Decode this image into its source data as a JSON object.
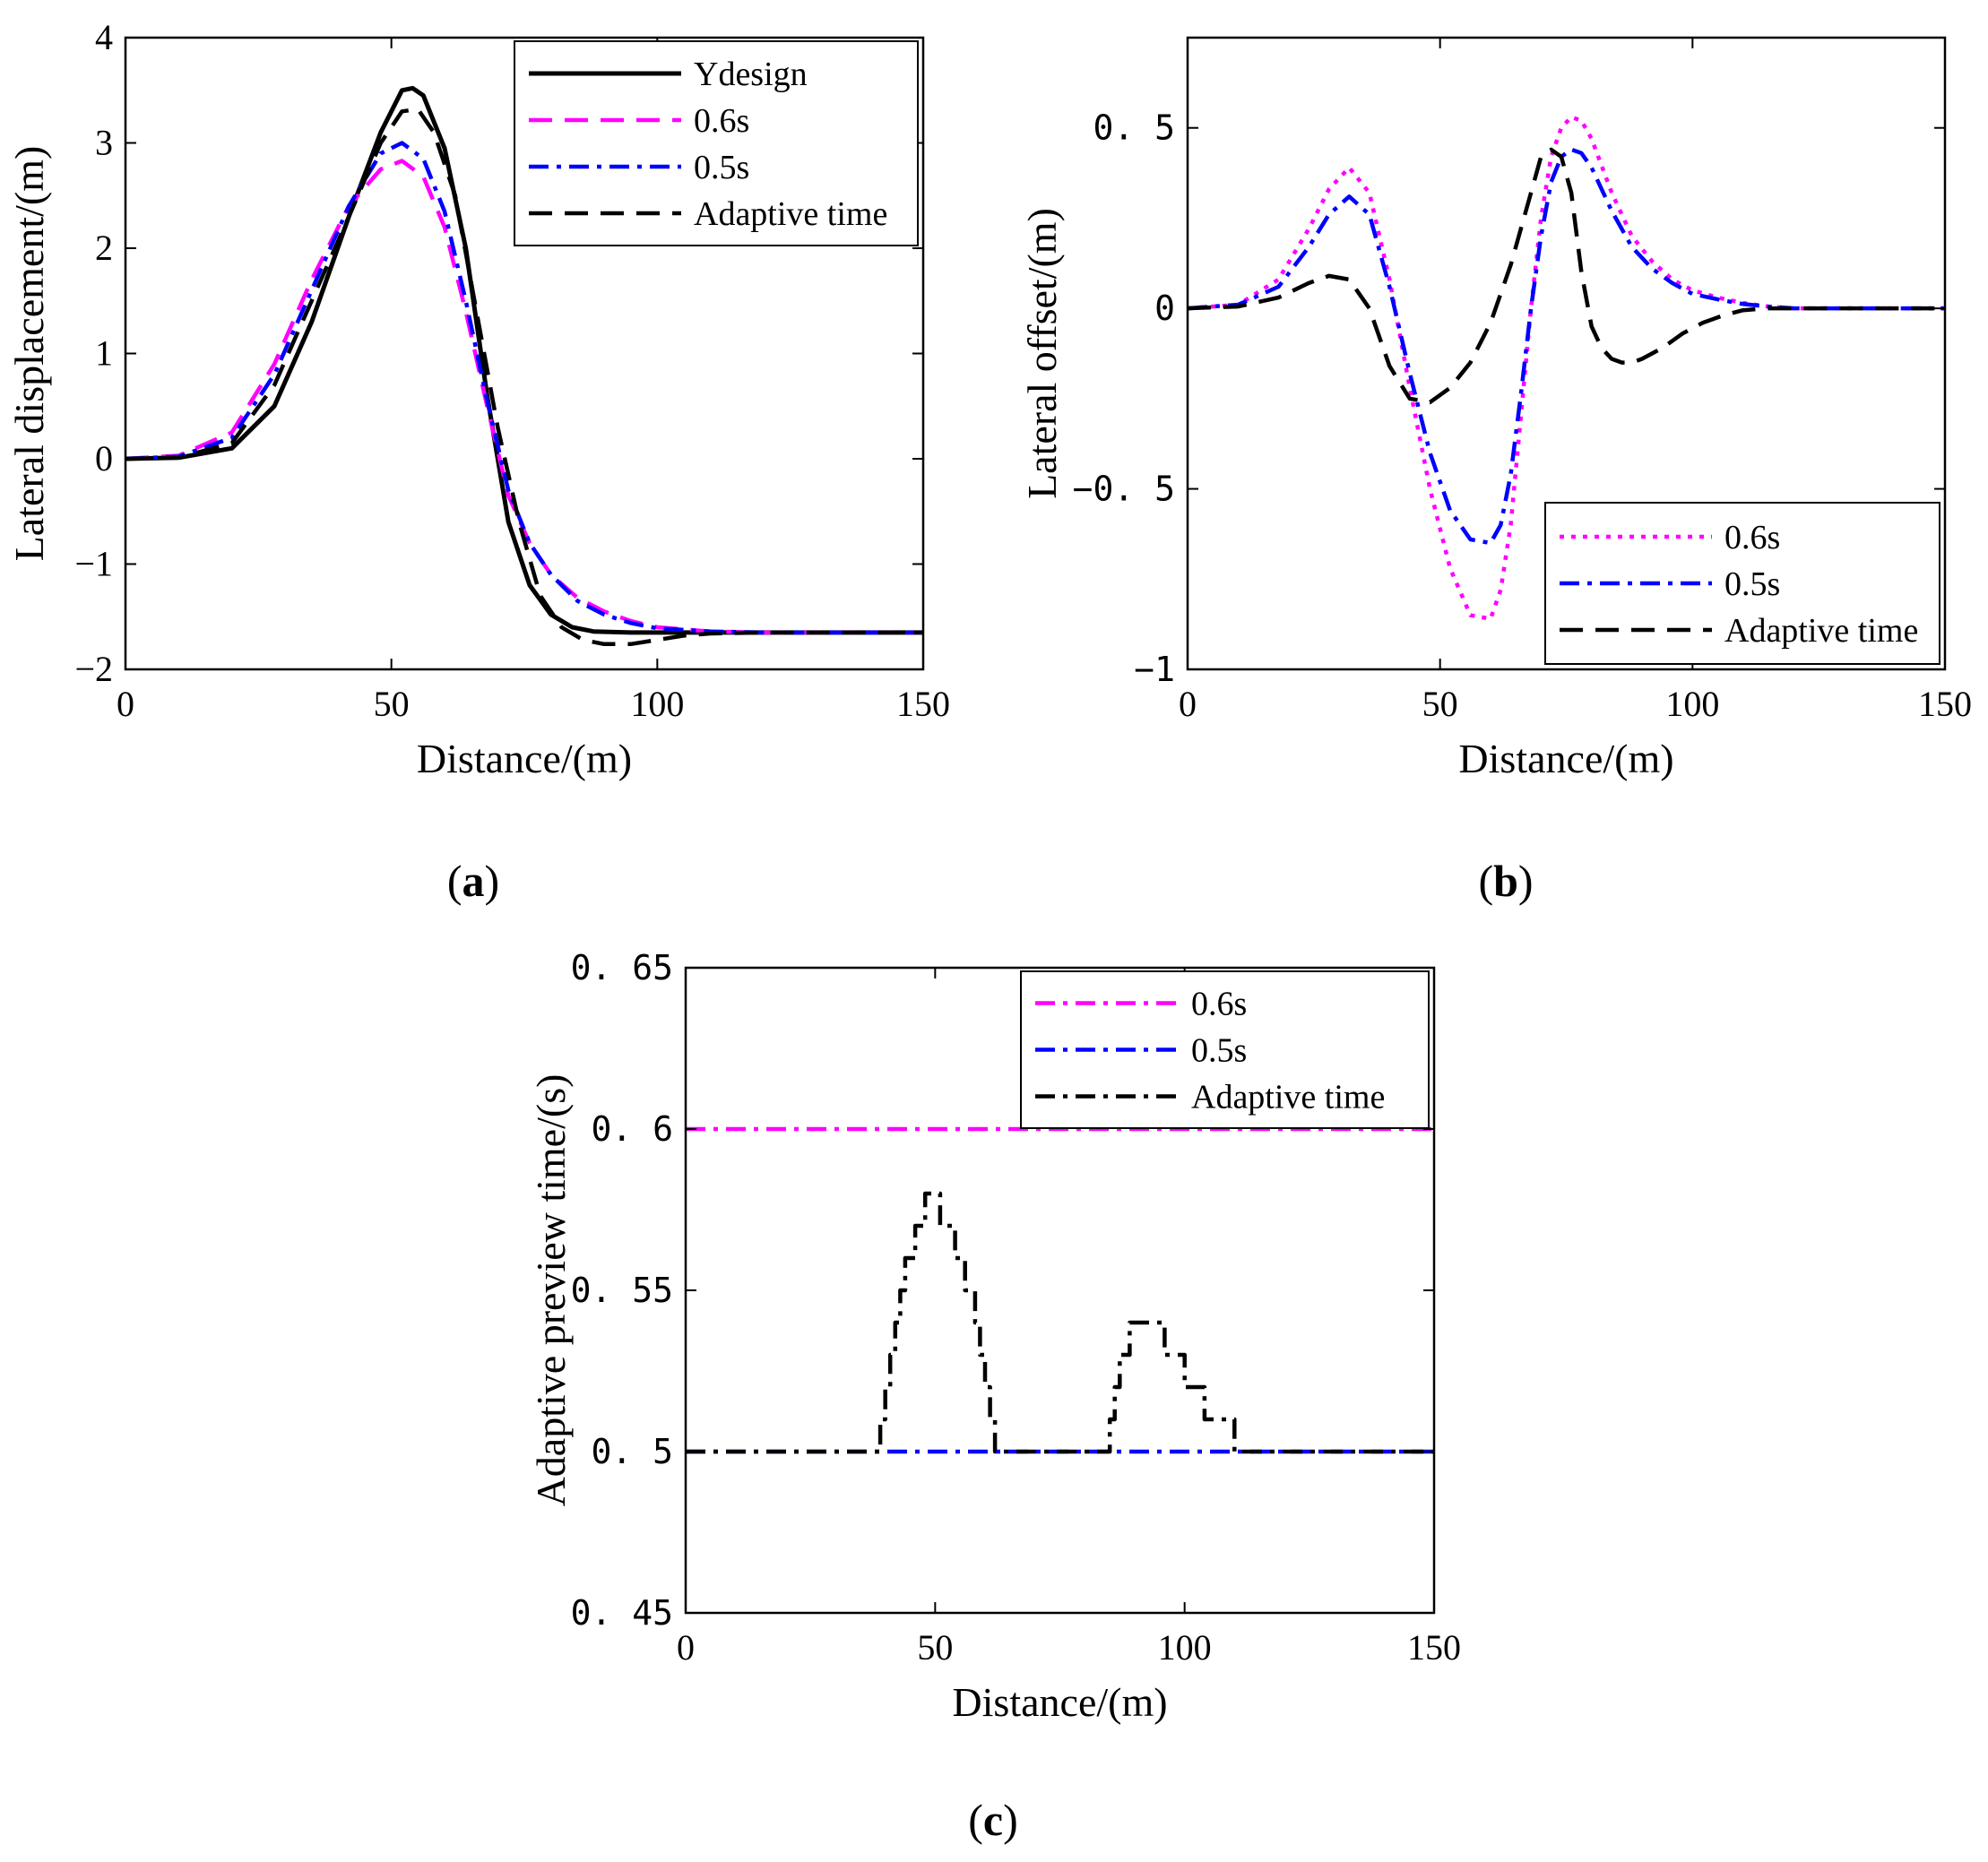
{
  "figure": {
    "captions": [
      {
        "open": "(",
        "letter": "a",
        "close": ")"
      },
      {
        "open": "(",
        "letter": "b",
        "close": ")"
      },
      {
        "open": "(",
        "letter": "c",
        "close": ")"
      }
    ]
  },
  "chart_data": [
    {
      "id": "a",
      "type": "line",
      "title": "",
      "xlabel": "Distance/(m)",
      "ylabel": "Lateral displacement/(m)",
      "xlim": [
        0,
        150
      ],
      "ylim": [
        -2,
        4
      ],
      "xticks": [
        0,
        50,
        100,
        150
      ],
      "yticks": [
        -2,
        -1,
        0,
        1,
        2,
        3,
        4
      ],
      "xtick_labels": [
        "0",
        "50",
        "100",
        "150"
      ],
      "ytick_labels": [
        "−2",
        "−1",
        "0",
        "1",
        "2",
        "3",
        "4"
      ],
      "legend_position": "top-right",
      "grid": false,
      "series": [
        {
          "name": "Ydesign",
          "color": "#000000",
          "style": "solid",
          "x": [
            0,
            10,
            20,
            28,
            35,
            42,
            48,
            52,
            54,
            56,
            60,
            64,
            68,
            72,
            76,
            80,
            84,
            88,
            95,
            105,
            120,
            150
          ],
          "y": [
            0,
            0.01,
            0.1,
            0.5,
            1.3,
            2.3,
            3.1,
            3.5,
            3.52,
            3.45,
            2.95,
            2.0,
            0.6,
            -0.6,
            -1.2,
            -1.48,
            -1.6,
            -1.64,
            -1.65,
            -1.65,
            -1.65,
            -1.65
          ]
        },
        {
          "name": "0.6s",
          "color": "#ff00ff",
          "style": "dash",
          "x": [
            0,
            10,
            20,
            28,
            35,
            42,
            48,
            52,
            56,
            60,
            64,
            68,
            72,
            76,
            80,
            85,
            90,
            95,
            100,
            110,
            120,
            150
          ],
          "y": [
            0,
            0.03,
            0.25,
            0.9,
            1.7,
            2.4,
            2.75,
            2.83,
            2.68,
            2.2,
            1.4,
            0.5,
            -0.35,
            -0.8,
            -1.1,
            -1.32,
            -1.45,
            -1.54,
            -1.6,
            -1.64,
            -1.65,
            -1.65
          ]
        },
        {
          "name": "0.5s",
          "color": "#0000ff",
          "style": "dashdot",
          "x": [
            0,
            10,
            20,
            28,
            35,
            42,
            48,
            52,
            56,
            60,
            64,
            68,
            72,
            76,
            80,
            85,
            90,
            95,
            100,
            110,
            120,
            150
          ],
          "y": [
            0,
            0.02,
            0.2,
            0.8,
            1.6,
            2.4,
            2.9,
            3.0,
            2.85,
            2.35,
            1.5,
            0.55,
            -0.3,
            -0.8,
            -1.1,
            -1.35,
            -1.48,
            -1.56,
            -1.61,
            -1.64,
            -1.65,
            -1.65
          ]
        },
        {
          "name": "Adaptive time",
          "color": "#000000",
          "style": "dash",
          "x": [
            0,
            10,
            20,
            28,
            35,
            42,
            48,
            52,
            55,
            58,
            62,
            66,
            70,
            74,
            78,
            82,
            86,
            90,
            95,
            100,
            105,
            110,
            120,
            150
          ],
          "y": [
            0,
            0.01,
            0.15,
            0.7,
            1.5,
            2.3,
            3.0,
            3.3,
            3.32,
            3.1,
            2.5,
            1.4,
            0.3,
            -0.6,
            -1.3,
            -1.6,
            -1.72,
            -1.76,
            -1.76,
            -1.72,
            -1.68,
            -1.66,
            -1.65,
            -1.65
          ]
        }
      ]
    },
    {
      "id": "b",
      "type": "line",
      "title": "",
      "xlabel": "Distance/(m)",
      "ylabel": "Lateral offset/(m)",
      "xlim": [
        0,
        150
      ],
      "ylim": [
        -1,
        0.75
      ],
      "xticks": [
        0,
        50,
        100,
        150
      ],
      "yticks": [
        -1,
        -0.5,
        0,
        0.5
      ],
      "xtick_labels": [
        "0",
        "50",
        "100",
        "150"
      ],
      "ytick_labels": [
        "−1",
        "−0. 5",
        "0",
        "0. 5"
      ],
      "legend_position": "bottom-right",
      "grid": false,
      "series": [
        {
          "name": "0.6s",
          "color": "#ff00ff",
          "style": "dot",
          "x": [
            0,
            10,
            18,
            24,
            28,
            32,
            36,
            40,
            44,
            48,
            52,
            56,
            60,
            62,
            64,
            66,
            68,
            70,
            72,
            74,
            76,
            78,
            80,
            84,
            88,
            92,
            96,
            100,
            105,
            110,
            115,
            120,
            150
          ],
          "y": [
            0,
            0.01,
            0.08,
            0.22,
            0.33,
            0.39,
            0.32,
            0.08,
            -0.22,
            -0.5,
            -0.72,
            -0.85,
            -0.86,
            -0.78,
            -0.6,
            -0.3,
            0.0,
            0.25,
            0.42,
            0.5,
            0.53,
            0.52,
            0.47,
            0.32,
            0.2,
            0.13,
            0.08,
            0.05,
            0.03,
            0.015,
            0.005,
            0.0,
            0
          ]
        },
        {
          "name": "0.5s",
          "color": "#0000ff",
          "style": "dashdot",
          "x": [
            0,
            10,
            18,
            24,
            28,
            32,
            36,
            40,
            44,
            48,
            52,
            56,
            60,
            62,
            64,
            66,
            68,
            70,
            72,
            74,
            76,
            78,
            80,
            84,
            88,
            92,
            96,
            100,
            105,
            110,
            115,
            120,
            150
          ],
          "y": [
            0,
            0.01,
            0.06,
            0.17,
            0.26,
            0.31,
            0.26,
            0.06,
            -0.18,
            -0.4,
            -0.56,
            -0.64,
            -0.65,
            -0.6,
            -0.46,
            -0.24,
            0.0,
            0.2,
            0.35,
            0.42,
            0.44,
            0.43,
            0.39,
            0.27,
            0.17,
            0.11,
            0.07,
            0.04,
            0.025,
            0.012,
            0.005,
            0.0,
            0
          ]
        },
        {
          "name": "Adaptive time",
          "color": "#000000",
          "style": "dash",
          "x": [
            0,
            10,
            18,
            24,
            28,
            32,
            36,
            40,
            44,
            48,
            52,
            56,
            60,
            64,
            68,
            70,
            72,
            74,
            76,
            78,
            80,
            82,
            84,
            86,
            88,
            90,
            94,
            98,
            102,
            106,
            110,
            115,
            120,
            150
          ],
          "y": [
            0,
            0.005,
            0.03,
            0.07,
            0.09,
            0.08,
            0.0,
            -0.16,
            -0.25,
            -0.26,
            -0.22,
            -0.15,
            -0.04,
            0.12,
            0.32,
            0.42,
            0.44,
            0.42,
            0.32,
            0.1,
            -0.05,
            -0.11,
            -0.14,
            -0.15,
            -0.15,
            -0.14,
            -0.11,
            -0.07,
            -0.04,
            -0.02,
            -0.005,
            0.0,
            0.0,
            0
          ]
        }
      ]
    },
    {
      "id": "c",
      "type": "line",
      "title": "",
      "xlabel": "Distance/(m)",
      "ylabel": "Adaptive preview time/(s)",
      "xlim": [
        0,
        150
      ],
      "ylim": [
        0.45,
        0.65
      ],
      "xticks": [
        0,
        50,
        100,
        150
      ],
      "yticks": [
        0.45,
        0.5,
        0.55,
        0.6,
        0.65
      ],
      "xtick_labels": [
        "0",
        "50",
        "100",
        "150"
      ],
      "ytick_labels": [
        "0. 45",
        "0. 5",
        "0. 55",
        "0. 6",
        "0. 65"
      ],
      "legend_position": "top-right",
      "grid": false,
      "series": [
        {
          "name": "0.6s",
          "color": "#ff00ff",
          "style": "dashdot",
          "x": [
            0,
            150
          ],
          "y": [
            0.6,
            0.6
          ]
        },
        {
          "name": "0.5s",
          "color": "#0000ff",
          "style": "dashdot",
          "x": [
            0,
            150
          ],
          "y": [
            0.5,
            0.5
          ]
        },
        {
          "name": "Adaptive time",
          "color": "#000000",
          "style": "dashdot",
          "step": true,
          "x": [
            0,
            38,
            39,
            40,
            41,
            42,
            43,
            44,
            45,
            46,
            47,
            48,
            49,
            50,
            51,
            52,
            53,
            54,
            55,
            56,
            57,
            58,
            59,
            60,
            61,
            62,
            63,
            84,
            85,
            86,
            87,
            88,
            89,
            90,
            91,
            92,
            93,
            94,
            95,
            96,
            97,
            98,
            99,
            100,
            101,
            102,
            103,
            104,
            105,
            106,
            107,
            108,
            109,
            110,
            150
          ],
          "y": [
            0.5,
            0.5,
            0.51,
            0.52,
            0.53,
            0.54,
            0.55,
            0.56,
            0.56,
            0.57,
            0.57,
            0.58,
            0.58,
            0.58,
            0.57,
            0.57,
            0.57,
            0.56,
            0.56,
            0.55,
            0.55,
            0.54,
            0.53,
            0.52,
            0.51,
            0.5,
            0.5,
            0.5,
            0.51,
            0.52,
            0.53,
            0.53,
            0.54,
            0.54,
            0.54,
            0.54,
            0.54,
            0.54,
            0.54,
            0.53,
            0.53,
            0.53,
            0.53,
            0.52,
            0.52,
            0.52,
            0.52,
            0.51,
            0.51,
            0.51,
            0.51,
            0.51,
            0.51,
            0.5,
            0.5
          ]
        }
      ]
    }
  ]
}
